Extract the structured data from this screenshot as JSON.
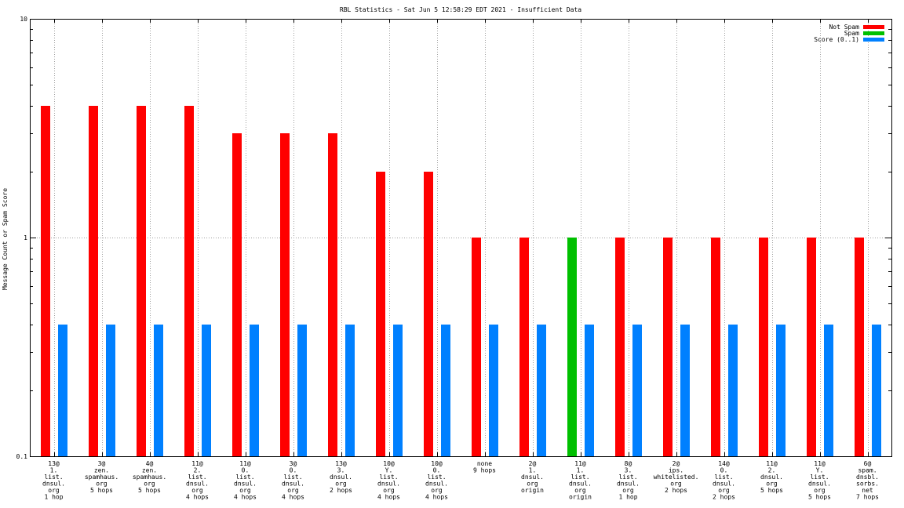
{
  "chart_data": {
    "type": "bar",
    "title": "RBL Statistics - Sat Jun  5 12:58:29 EDT 2021 - Insufficient Data",
    "xlabel": "",
    "ylabel": "Message Count or Spam Score",
    "yscale": "log",
    "ylim": [
      0.1,
      10
    ],
    "ytick_labels": [
      "10",
      "1",
      "0.1"
    ],
    "grid": true,
    "legend_position": "top-right",
    "categories": [
      [
        "13@",
        "1.",
        "list.",
        "dnsul.",
        "org",
        "1 hop"
      ],
      [
        "3@",
        "zen.",
        "spamhaus.",
        "org",
        "5 hops"
      ],
      [
        "4@",
        "zen.",
        "spamhaus.",
        "org",
        "5 hops"
      ],
      [
        "11@",
        "2.",
        "list.",
        "dnsul.",
        "org",
        "4 hops"
      ],
      [
        "11@",
        "0.",
        "list.",
        "dnsul.",
        "org",
        "4 hops"
      ],
      [
        "3@",
        "0.",
        "list.",
        "dnsul.",
        "org",
        "4 hops"
      ],
      [
        "13@",
        "3.",
        "dnsul.",
        "org",
        "2 hops"
      ],
      [
        "10@",
        "Y.",
        "list.",
        "dnsul.",
        "org",
        "4 hops"
      ],
      [
        "10@",
        "0.",
        "list.",
        "dnsul.",
        "org",
        "4 hops"
      ],
      [
        "none",
        "9 hops"
      ],
      [
        "2@",
        "1.",
        "dnsul.",
        "org",
        "origin"
      ],
      [
        "11@",
        "1.",
        "list.",
        "dnsul.",
        "org",
        "origin"
      ],
      [
        "8@",
        "3.",
        "list.",
        "dnsul.",
        "org",
        "1 hop"
      ],
      [
        "2@",
        "ips.",
        "whitelisted.",
        "org",
        "2 hops"
      ],
      [
        "14@",
        "0.",
        "list.",
        "dnsul.",
        "org",
        "2 hops"
      ],
      [
        "11@",
        "2.",
        "dnsul.",
        "org",
        "5 hops"
      ],
      [
        "11@",
        "Y.",
        "list.",
        "dnsul.",
        "org",
        "5 hops"
      ],
      [
        "6@",
        "spam.",
        "dnsbl.",
        "sorbs.",
        "net",
        "7 hops"
      ]
    ],
    "series": [
      {
        "name": "Not Spam",
        "color": "#ff0000",
        "values": [
          4,
          4,
          4,
          4,
          3,
          3,
          3,
          2,
          2,
          1,
          1,
          null,
          1,
          1,
          1,
          1,
          1,
          1
        ]
      },
      {
        "name": "Spam",
        "color": "#00c000",
        "values": [
          null,
          null,
          null,
          null,
          null,
          null,
          null,
          null,
          null,
          null,
          null,
          1,
          null,
          null,
          null,
          null,
          null,
          null
        ]
      },
      {
        "name": "Score (0..1)",
        "color": "#0080ff",
        "values": [
          0.4,
          0.4,
          0.4,
          0.4,
          0.4,
          0.4,
          0.4,
          0.4,
          0.4,
          0.4,
          0.4,
          0.4,
          0.4,
          0.4,
          0.4,
          0.4,
          0.4,
          0.4
        ]
      }
    ]
  }
}
